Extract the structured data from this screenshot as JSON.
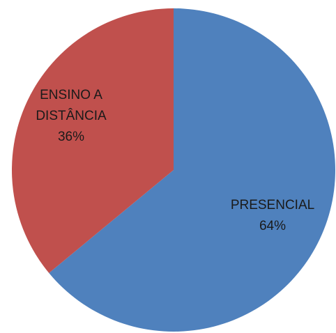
{
  "chart_data": {
    "type": "pie",
    "title": "",
    "slices": [
      {
        "label_lines": [
          "PRESENCIAL",
          "64%"
        ],
        "value": 64,
        "color": "#4F81BD"
      },
      {
        "label_lines": [
          "ENSINO A",
          "DISTÂNCIA",
          "36%"
        ],
        "value": 36,
        "color": "#C0504D"
      }
    ],
    "start_angle_deg": 0,
    "direction": "clockwise",
    "data_labels": "inside",
    "legend": "none"
  }
}
